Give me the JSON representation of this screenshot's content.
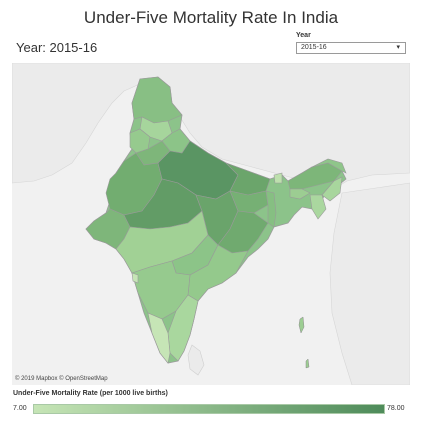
{
  "title": "Under-Five Mortality Rate In India",
  "year_label": "Year: 2015-16",
  "filter": {
    "caption": "Year",
    "selected": "2015-16"
  },
  "map": {
    "attribution": "© 2019 Mapbox © OpenStreetMap"
  },
  "legend": {
    "title": "Under-Five Mortality Rate (per 1000 live births)",
    "min": "7.00",
    "max": "78.00",
    "colors": [
      "#c6e5b6",
      "#4e8b5a"
    ]
  }
}
